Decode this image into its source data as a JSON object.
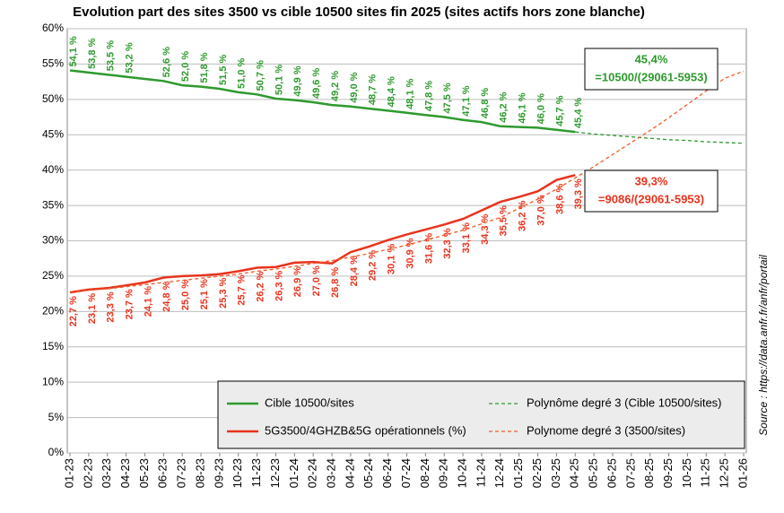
{
  "chart_data": {
    "type": "line",
    "title": "Evolution part des sites 3500 vs cible 10500 sites fin 2025 (sites actifs hors zone blanche)",
    "categories": [
      "01-23",
      "02-23",
      "03-23",
      "04-23",
      "05-23",
      "06-23",
      "07-23",
      "08-23",
      "09-23",
      "10-23",
      "11-23",
      "12-23",
      "01-24",
      "02-24",
      "03-24",
      "04-24",
      "05-24",
      "06-24",
      "07-24",
      "08-24",
      "09-24",
      "10-24",
      "11-24",
      "12-24",
      "01-25",
      "02-25",
      "03-25",
      "04-25",
      "05-25",
      "06-25",
      "07-25",
      "08-25",
      "09-25",
      "10-25",
      "11-25",
      "12-25",
      "01-26"
    ],
    "series": [
      {
        "name": "Cible 10500/sites",
        "color": "#2e9a2e",
        "dash": false,
        "values": [
          54.1,
          53.8,
          53.5,
          53.2,
          52.9,
          52.6,
          52.0,
          51.8,
          51.5,
          51.0,
          50.7,
          50.1,
          49.9,
          49.6,
          49.2,
          49.0,
          48.7,
          48.4,
          48.1,
          47.8,
          47.5,
          47.1,
          46.8,
          46.2,
          46.1,
          46.0,
          45.7,
          45.4,
          null,
          null,
          null,
          null,
          null,
          null,
          null,
          null,
          null
        ],
        "value_labels": [
          "54,1 %",
          "53,8 %",
          "53,5 %",
          "53,2 %",
          null,
          "52,6 %",
          "52,0 %",
          "51,8 %",
          "51,5 %",
          "51,0 %",
          "50,7 %",
          "50,1 %",
          "49,9 %",
          "49,6 %",
          "49,2 %",
          "49,0 %",
          "48,7 %",
          "48,4 %",
          "48,1 %",
          "47,8 %",
          "47,5 %",
          "47,1 %",
          "46,8 %",
          "46,2 %",
          "46,1 %",
          "46,0 %",
          "45,7 %",
          "45,4 %",
          null,
          null,
          null,
          null,
          null,
          null,
          null,
          null,
          null
        ]
      },
      {
        "name": "5G3500/4GHZB&5G opérationnels (%)",
        "color": "#e8331c",
        "dash": false,
        "values": [
          22.7,
          23.1,
          23.3,
          23.7,
          24.1,
          24.8,
          25.0,
          25.1,
          25.3,
          25.7,
          26.2,
          26.3,
          26.9,
          27.0,
          26.8,
          28.4,
          29.2,
          30.1,
          30.9,
          31.6,
          32.3,
          33.1,
          34.3,
          35.5,
          36.2,
          37.0,
          38.6,
          39.3,
          null,
          null,
          null,
          null,
          null,
          null,
          null,
          null,
          null
        ],
        "value_labels": [
          "22,7 %",
          "23,1 %",
          "23,3 %",
          "23,7 %",
          "24,1 %",
          "24,8 %",
          "25,0 %",
          "25,1 %",
          "25,3 %",
          "25,7 %",
          "26,2 %",
          "26,3 %",
          "26,9 %",
          "27,0 %",
          "26,8 %",
          "28,4 %",
          "29,2 %",
          "30,1 %",
          "30,9 %",
          "31,6 %",
          "32,3 %",
          "33,1 %",
          "34,3 %",
          "35,5 %",
          "36,2 %",
          "37,0 %",
          "38,6 %",
          "39,3 %",
          null,
          null,
          null,
          null,
          null,
          null,
          null,
          null,
          null
        ]
      },
      {
        "name": "Polynôme degré 3 (Cible 10500/sites)",
        "color": "#2e9a2e",
        "dash": true,
        "values": [
          null,
          null,
          null,
          null,
          null,
          null,
          null,
          null,
          null,
          null,
          null,
          null,
          null,
          null,
          null,
          null,
          null,
          null,
          null,
          null,
          null,
          null,
          null,
          null,
          null,
          null,
          null,
          45.4,
          45.1,
          44.9,
          44.7,
          44.5,
          44.3,
          44.2,
          44.0,
          43.9,
          43.8
        ]
      },
      {
        "name": "Polynome degré 3 (3500/sites)",
        "color": "#f05a28",
        "dash": true,
        "values": [
          22.8,
          23.0,
          23.2,
          23.5,
          23.8,
          24.1,
          24.4,
          24.7,
          25.0,
          25.3,
          25.7,
          26.0,
          26.4,
          26.8,
          27.2,
          27.7,
          28.2,
          28.8,
          29.4,
          30.1,
          30.8,
          31.5,
          32.4,
          33.3,
          34.6,
          35.9,
          37.3,
          38.9,
          40.5,
          42.2,
          43.9,
          45.6,
          47.4,
          49.3,
          51.2,
          53.0,
          54.0
        ]
      }
    ],
    "ylim": [
      0,
      60
    ],
    "yticks": [
      {
        "value": 0,
        "label": "0%"
      },
      {
        "value": 5,
        "label": "5%"
      },
      {
        "value": 10,
        "label": "10%"
      },
      {
        "value": 15,
        "label": "15%"
      },
      {
        "value": 20,
        "label": "20%"
      },
      {
        "value": 25,
        "label": "25%"
      },
      {
        "value": 30,
        "label": "30%"
      },
      {
        "value": 35,
        "label": "35%"
      },
      {
        "value": 40,
        "label": "40%"
      },
      {
        "value": 45,
        "label": "45%"
      },
      {
        "value": 50,
        "label": "50%"
      },
      {
        "value": 55,
        "label": "55%"
      },
      {
        "value": 60,
        "label": "60%"
      }
    ],
    "grid": true,
    "annotations": [
      {
        "lines": [
          "45,4%",
          "=10500/(29061-5953)"
        ],
        "color": "#2e9a2e"
      },
      {
        "lines": [
          "39,3%",
          "=9086/(29061-5953)"
        ],
        "color": "#e8331c"
      }
    ],
    "source": "Source : https://data.anfr.fr/anfr/portail"
  }
}
